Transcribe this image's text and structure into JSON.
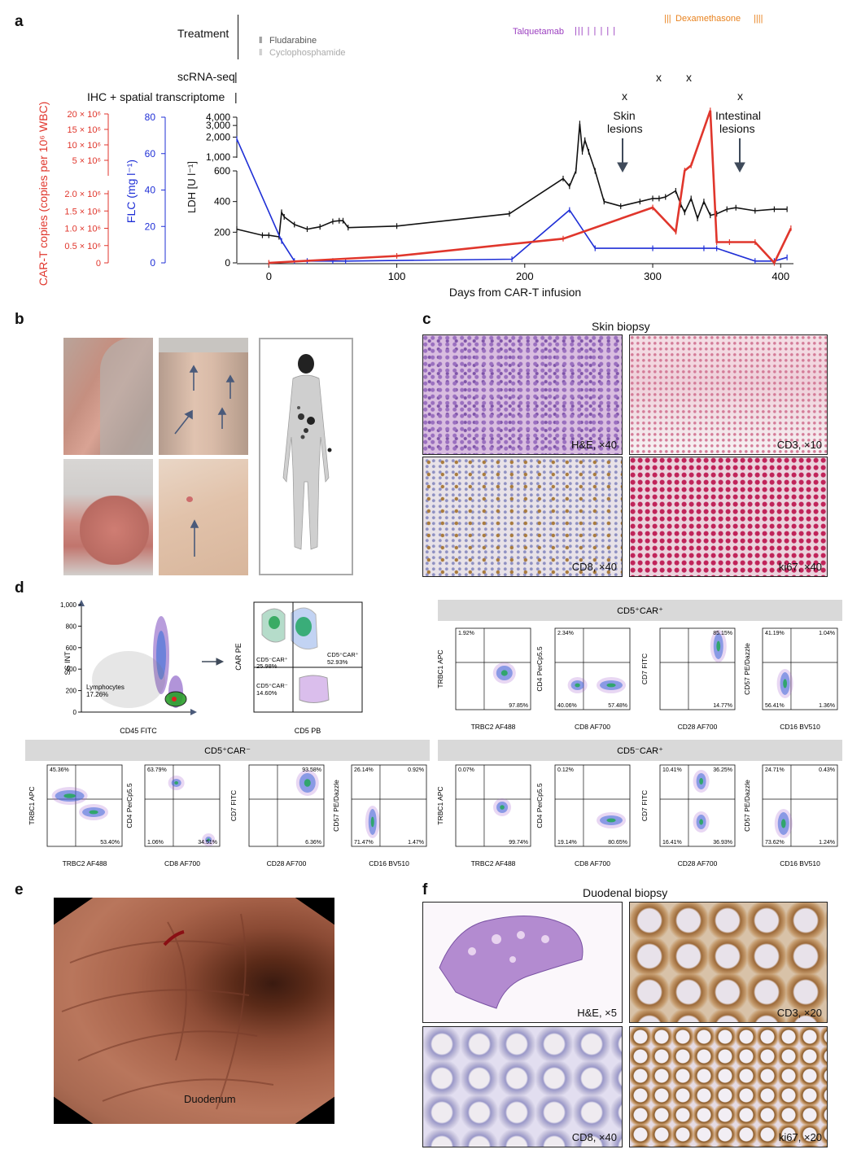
{
  "panel_labels": {
    "a": "a",
    "b": "b",
    "c": "c",
    "d": "d",
    "e": "e",
    "f": "f"
  },
  "panel_a": {
    "rows": {
      "treatment": "Treatment",
      "scrna": "scRNA-seq",
      "ihc": "IHC + spatial transcriptome"
    },
    "drugs": {
      "fludarabine": "Fludarabine",
      "cyclophosphamide": "Cyclophosphamide",
      "talquetamab": "Talquetamab",
      "dexamethasone": "Dexamethasone"
    },
    "drug_marks": {
      "fludarabine": "‖",
      "cyclophosphamide": "‖",
      "talquetamab": "|||  |  |  |  |       |",
      "dexamethasone_left": "|||",
      "dexamethasone_right": "||||"
    },
    "events": {
      "x_mark": "x",
      "skin_line1": "Skin",
      "skin_line2": "lesions",
      "intestinal_line1": "Intestinal",
      "intestinal_line2": "lesions"
    },
    "colors": {
      "car_t": "#e0362c",
      "flc": "#1f2fd6",
      "ldh": "#111111",
      "talquetamab": "#9b3fc0",
      "dexamethasone": "#e8821e",
      "fludarabine": "#555555",
      "cyclophosphamide": "#aaaaaa"
    }
  },
  "chart_data": {
    "type": "line",
    "xlabel": "Days from CAR-T infusion",
    "xlim": [
      -25,
      410
    ],
    "xticks": [
      "0",
      "100",
      "200",
      "300",
      "400"
    ],
    "axes": {
      "car_t_label": "CAR-T copies (copies per 10⁶ WBC)",
      "car_t_upper_ticks": [
        "20 × 10⁶",
        "15 × 10⁶",
        "10 × 10⁶",
        "5 × 10⁶"
      ],
      "car_t_lower_ticks": [
        "2.0 × 10⁶",
        "1.5 × 10⁶",
        "1.0 × 10⁶",
        "0.5 × 10⁶",
        "0"
      ],
      "flc_label": "FLC (mg l⁻¹)",
      "flc_ticks": [
        "80",
        "60",
        "40",
        "20",
        "0"
      ],
      "ldh_label": "LDH [U l⁻¹]",
      "ldh_upper_ticks": [
        "4,000",
        "3,000",
        "2,000",
        "1,000"
      ],
      "ldh_lower_ticks": [
        "600",
        "400",
        "200",
        "0"
      ]
    },
    "series": [
      {
        "name": "LDH",
        "color": "#111111",
        "x": [
          -25,
          -5,
          0,
          8,
          10,
          12,
          20,
          30,
          40,
          50,
          55,
          58,
          62,
          100,
          188,
          230,
          235,
          240,
          243,
          245,
          247,
          250,
          255,
          262,
          275,
          290,
          300,
          305,
          310,
          318,
          322,
          325,
          330,
          335,
          340,
          345,
          350,
          358,
          365,
          380,
          395,
          405
        ],
        "y": [
          220,
          180,
          180,
          170,
          330,
          300,
          250,
          220,
          235,
          270,
          275,
          275,
          230,
          240,
          320,
          550,
          500,
          620,
          3200,
          1200,
          1800,
          1200,
          600,
          400,
          370,
          400,
          420,
          420,
          430,
          470,
          380,
          330,
          420,
          290,
          400,
          310,
          320,
          350,
          360,
          340,
          350,
          350
        ]
      },
      {
        "name": "FLC",
        "color": "#1f2fd6",
        "x": [
          -25,
          10,
          20,
          30,
          50,
          60,
          190,
          235,
          255,
          300,
          340,
          350,
          380,
          395,
          405
        ],
        "y": [
          68,
          12,
          1,
          1,
          1,
          1,
          2,
          29,
          8,
          8,
          8,
          8,
          1,
          1,
          3
        ]
      },
      {
        "name": "CAR-T copies",
        "color": "#e0362c",
        "x": [
          0,
          100,
          230,
          300,
          318,
          325,
          330,
          345,
          350,
          360,
          380,
          395,
          408
        ],
        "y_per_1e6": [
          0,
          0.2,
          0.7,
          1.6,
          0.9,
          3.5,
          5,
          21,
          0.6,
          0.6,
          0.6,
          0,
          1.0
        ]
      }
    ]
  },
  "panel_b": {},
  "panel_c": {
    "title": "Skin biopsy",
    "tiles": [
      "H&E, ×40",
      "CD3, ×10",
      "CD8, ×40",
      "ki67, ×40"
    ]
  },
  "panel_d": {
    "gating": {
      "ss_label": "SS INT",
      "cd45_label": "CD45 FITC",
      "lymph_label": "Lymphocytes",
      "lymph_pct": "17.26%",
      "y_ticks": [
        "1,000",
        "800",
        "600",
        "400",
        "200",
        "0"
      ],
      "car_label": "CAR PE",
      "cd5_label": "CD5 PB",
      "q_cd5neg_carpos": "CD5⁻CAR⁺",
      "q_cd5neg_carpos_pct": "25.98%",
      "q_cd5pos_carpos": "CD5⁺CAR⁺",
      "q_cd5pos_carpos_pct": "52.93%",
      "q_cd5pos_carneg": "CD5⁺CAR⁻",
      "q_cd5pos_carneg_pct": "14.60%"
    },
    "groups": [
      {
        "title": "CD5⁺CAR⁺",
        "plots": [
          {
            "xl": "TRBC2 AF488",
            "yl": "TRBC1 APC",
            "tl": "1.92%",
            "tr": "",
            "bl": "",
            "br": "97.85%"
          },
          {
            "xl": "CD8 AF700",
            "yl": "CD4 PerCp5.5",
            "tl": "2.34%",
            "tr": "",
            "bl": "40.06%",
            "br": "57.48%"
          },
          {
            "xl": "CD28 AF700",
            "yl": "CD7 FITC",
            "tl": "",
            "tr": "85.15%",
            "bl": "",
            "br": "14.77%"
          },
          {
            "xl": "CD16 BV510",
            "yl": "CD57 PE/Dazzle",
            "tl": "41.19%",
            "tr": "1.04%",
            "bl": "56.41%",
            "br": "1.36%"
          }
        ]
      },
      {
        "title": "CD5⁺CAR⁻",
        "plots": [
          {
            "xl": "TRBC2 AF488",
            "yl": "TRBC1 APC",
            "tl": "45.36%",
            "tr": "",
            "bl": "",
            "br": "53.40%"
          },
          {
            "xl": "CD8 AF700",
            "yl": "CD4 PerCp5.5",
            "tl": "63.79%",
            "tr": "",
            "bl": "1.06%",
            "br": "34.51%"
          },
          {
            "xl": "CD28 AF700",
            "yl": "CD7 FITC",
            "tl": "",
            "tr": "93.58%",
            "bl": "",
            "br": "6.36%"
          },
          {
            "xl": "CD16 BV510",
            "yl": "CD57 PE/Dazzle",
            "tl": "26.14%",
            "tr": "0.92%",
            "bl": "71.47%",
            "br": "1.47%"
          }
        ]
      },
      {
        "title": "CD5⁻CAR⁺",
        "plots": [
          {
            "xl": "TRBC2 AF488",
            "yl": "TRBC1 APC",
            "tl": "0.07%",
            "tr": "",
            "bl": "",
            "br": "99.74%"
          },
          {
            "xl": "CD8 AF700",
            "yl": "CD4 PerCp5.5",
            "tl": "0.12%",
            "tr": "",
            "bl": "19.14%",
            "br": "80.65%"
          },
          {
            "xl": "CD28 AF700",
            "yl": "CD7 FITC",
            "tl": "10.41%",
            "tr": "36.25%",
            "bl": "16.41%",
            "br": "36.93%"
          },
          {
            "xl": "CD16 BV510",
            "yl": "CD57 PE/Dazzle",
            "tl": "24.71%",
            "tr": "0.43%",
            "bl": "73.62%",
            "br": "1.24%"
          }
        ]
      }
    ]
  },
  "panel_e": {
    "label": "Duodenum"
  },
  "panel_f": {
    "title": "Duodenal biopsy",
    "tiles": [
      "H&E, ×5",
      "CD3, ×20",
      "CD8, ×40",
      "ki67, ×20"
    ]
  }
}
